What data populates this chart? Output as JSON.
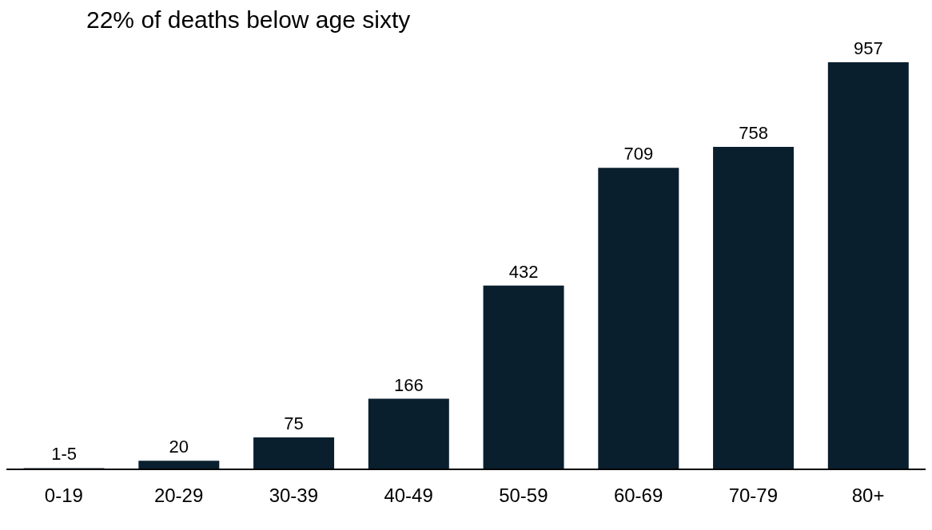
{
  "chart_data": {
    "type": "bar",
    "title": "22% of deaths below age sixty",
    "categories": [
      "0-19",
      "20-29",
      "30-39",
      "40-49",
      "50-59",
      "60-69",
      "70-79",
      "80+"
    ],
    "values": [
      3,
      20,
      75,
      166,
      432,
      709,
      758,
      957
    ],
    "value_labels": [
      "1-5",
      "20",
      "75",
      "166",
      "432",
      "709",
      "758",
      "957"
    ],
    "color": "#0a1f2e"
  }
}
